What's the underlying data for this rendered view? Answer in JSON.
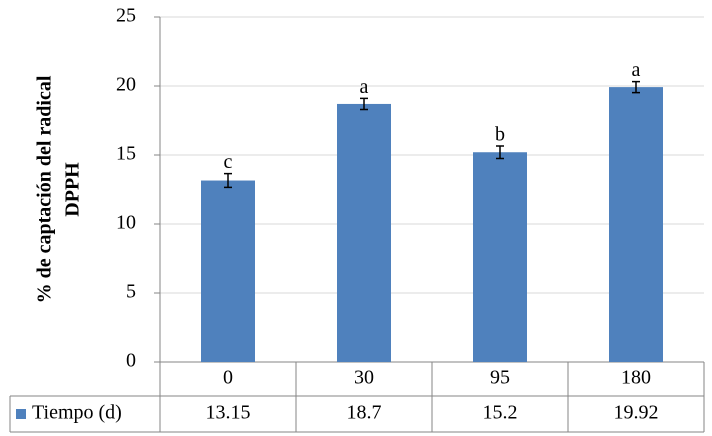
{
  "chart_data": {
    "type": "bar",
    "ylabel": [
      "% de captación del radical",
      "DPPH"
    ],
    "categories": [
      "0",
      "30",
      "95",
      "180"
    ],
    "series": [
      {
        "name": "Tiempo (d)",
        "color": "#4f81bd",
        "values": [
          13.15,
          18.7,
          15.2,
          19.92
        ],
        "errors": [
          0.5,
          0.4,
          0.45,
          0.4
        ],
        "labels": [
          "c",
          "a",
          "b",
          "a"
        ]
      }
    ],
    "ylim": [
      0,
      25
    ],
    "yticks": [
      0,
      5,
      10,
      15,
      20,
      25
    ],
    "grid": true
  }
}
